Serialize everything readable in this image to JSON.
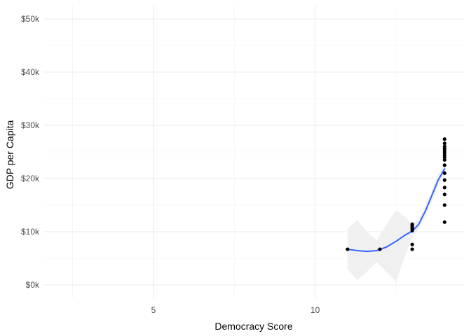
{
  "chart_data": {
    "type": "scatter",
    "title": "",
    "xlabel": "Democracy Score",
    "ylabel": "GDP per Capita",
    "xlim": [
      1.6,
      14.6
    ],
    "ylim": [
      -2500,
      52500
    ],
    "x_ticks": [
      5,
      10
    ],
    "x_tick_labels": [
      "5",
      "10"
    ],
    "x_minor_ticks": [
      2.5,
      7.5,
      12.5
    ],
    "y_ticks": [
      0,
      10000,
      20000,
      30000,
      40000,
      50000
    ],
    "y_tick_labels": [
      "$0k",
      "$10k",
      "$20k",
      "$30k",
      "$40k",
      "$50k"
    ],
    "y_minor_ticks": [
      5000,
      15000,
      25000,
      35000,
      45000
    ],
    "grid": true,
    "legend": "none",
    "colors": {
      "points": "#000000",
      "smooth_line": "#3366FF",
      "confidence_band": "#f0f0f0",
      "grid": "#ebebeb"
    },
    "points": [
      {
        "x": 11,
        "y": 6700
      },
      {
        "x": 12,
        "y": 6700
      },
      {
        "x": 13,
        "y": 6700
      },
      {
        "x": 13,
        "y": 7600
      },
      {
        "x": 13,
        "y": 10200
      },
      {
        "x": 13,
        "y": 10500
      },
      {
        "x": 13,
        "y": 10800
      },
      {
        "x": 13,
        "y": 11100
      },
      {
        "x": 13,
        "y": 11400
      },
      {
        "x": 14,
        "y": 11800
      },
      {
        "x": 14,
        "y": 15000
      },
      {
        "x": 14,
        "y": 17000
      },
      {
        "x": 14,
        "y": 18300
      },
      {
        "x": 14,
        "y": 19700
      },
      {
        "x": 14,
        "y": 21000
      },
      {
        "x": 14,
        "y": 22500
      },
      {
        "x": 14,
        "y": 23500
      },
      {
        "x": 14,
        "y": 24000
      },
      {
        "x": 14,
        "y": 24400
      },
      {
        "x": 14,
        "y": 24800
      },
      {
        "x": 14,
        "y": 25200
      },
      {
        "x": 14,
        "y": 25600
      },
      {
        "x": 14,
        "y": 26000
      },
      {
        "x": 14,
        "y": 26600
      },
      {
        "x": 14,
        "y": 27400
      }
    ],
    "smooth": {
      "method": "loess",
      "line": [
        {
          "x": 11.0,
          "y": 6700
        },
        {
          "x": 11.3,
          "y": 6450
        },
        {
          "x": 11.6,
          "y": 6300
        },
        {
          "x": 11.9,
          "y": 6450
        },
        {
          "x": 12.2,
          "y": 7100
        },
        {
          "x": 12.5,
          "y": 8200
        },
        {
          "x": 12.8,
          "y": 9450
        },
        {
          "x": 13.0,
          "y": 10100
        },
        {
          "x": 13.2,
          "y": 11400
        },
        {
          "x": 13.4,
          "y": 13800
        },
        {
          "x": 13.6,
          "y": 16700
        },
        {
          "x": 13.8,
          "y": 19700
        },
        {
          "x": 14.0,
          "y": 21800
        }
      ],
      "band_upper": [
        {
          "x": 11.0,
          "y": 10500
        },
        {
          "x": 11.3,
          "y": 12200
        },
        {
          "x": 11.6,
          "y": 10000
        },
        {
          "x": 11.9,
          "y": 8400
        },
        {
          "x": 12.2,
          "y": 11300
        },
        {
          "x": 12.5,
          "y": 14000
        },
        {
          "x": 12.8,
          "y": 12700
        },
        {
          "x": 13.0,
          "y": 11300
        },
        {
          "x": 13.2,
          "y": 12400
        },
        {
          "x": 13.4,
          "y": 14800
        },
        {
          "x": 13.6,
          "y": 17700
        },
        {
          "x": 13.8,
          "y": 20700
        },
        {
          "x": 14.0,
          "y": 23000
        }
      ],
      "band_lower": [
        {
          "x": 11.0,
          "y": 3000
        },
        {
          "x": 11.3,
          "y": 900
        },
        {
          "x": 11.6,
          "y": 2500
        },
        {
          "x": 11.9,
          "y": 4300
        },
        {
          "x": 12.2,
          "y": 2500
        },
        {
          "x": 12.5,
          "y": 600
        },
        {
          "x": 12.8,
          "y": 5900
        },
        {
          "x": 13.0,
          "y": 8900
        },
        {
          "x": 13.2,
          "y": 10400
        },
        {
          "x": 13.4,
          "y": 12800
        },
        {
          "x": 13.6,
          "y": 15700
        },
        {
          "x": 13.8,
          "y": 18700
        },
        {
          "x": 14.0,
          "y": 20600
        }
      ]
    }
  }
}
